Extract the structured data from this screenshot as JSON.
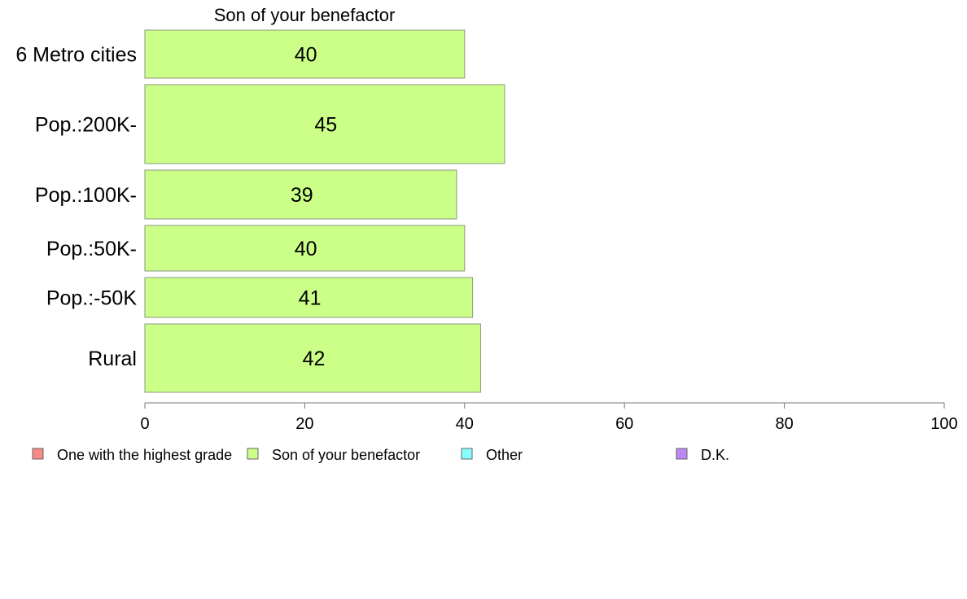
{
  "chart_data": {
    "type": "bar",
    "orientation": "horizontal",
    "title": "Son of your benefactor",
    "categories": [
      "6 Metro cities",
      "Pop.:200K-",
      "Pop.:100K-",
      "Pop.:50K-",
      "Pop.:-50K",
      "Rural"
    ],
    "series": [
      {
        "name": "Son of your benefactor",
        "values": [
          40,
          45,
          39,
          40,
          41,
          42
        ],
        "labels": [
          "40",
          "45",
          "39",
          "40",
          "41",
          "42"
        ],
        "color": "#ccff88"
      }
    ],
    "xlim": [
      0,
      100
    ],
    "xticks": [
      0,
      20,
      40,
      60,
      80,
      100
    ],
    "xtick_labels": [
      "0",
      "20",
      "40",
      "60",
      "80",
      "100"
    ],
    "grid": false,
    "legend": {
      "placement": "bottom",
      "items": [
        {
          "label": "One with the highest grade",
          "color": "#f58a86"
        },
        {
          "label": "Son of your benefactor",
          "color": "#ccff88"
        },
        {
          "label": "Other",
          "color": "#88ffff"
        },
        {
          "label": "D.K.",
          "color": "#bb88f5"
        }
      ]
    }
  }
}
